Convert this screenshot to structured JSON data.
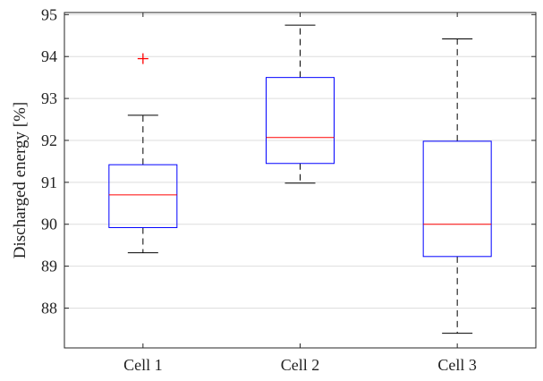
{
  "chart_data": {
    "type": "box",
    "title": "",
    "xlabel": "",
    "ylabel": "Discharged energy [%]",
    "ylim": [
      87.05,
      95.05
    ],
    "yticks": [
      88,
      89,
      90,
      91,
      92,
      93,
      94,
      95
    ],
    "grid": "horizontal",
    "categories": [
      "Cell 1",
      "Cell 2",
      "Cell 3"
    ],
    "boxes": [
      {
        "name": "Cell 1",
        "whisker_low": 89.32,
        "q1": 89.92,
        "median": 90.7,
        "q3": 91.42,
        "whisker_high": 92.6,
        "outliers": [
          93.95
        ]
      },
      {
        "name": "Cell 2",
        "whisker_low": 90.98,
        "q1": 91.45,
        "median": 92.07,
        "q3": 93.5,
        "whisker_high": 94.75,
        "outliers": []
      },
      {
        "name": "Cell 3",
        "whisker_low": 87.4,
        "q1": 89.23,
        "median": 90.0,
        "q3": 91.98,
        "whisker_high": 94.42,
        "outliers": []
      }
    ],
    "colors": {
      "box": "#0000ff",
      "median": "#ff0000",
      "outlier": "#ff0000",
      "whisker": "#000000",
      "grid": "#dedede"
    }
  }
}
